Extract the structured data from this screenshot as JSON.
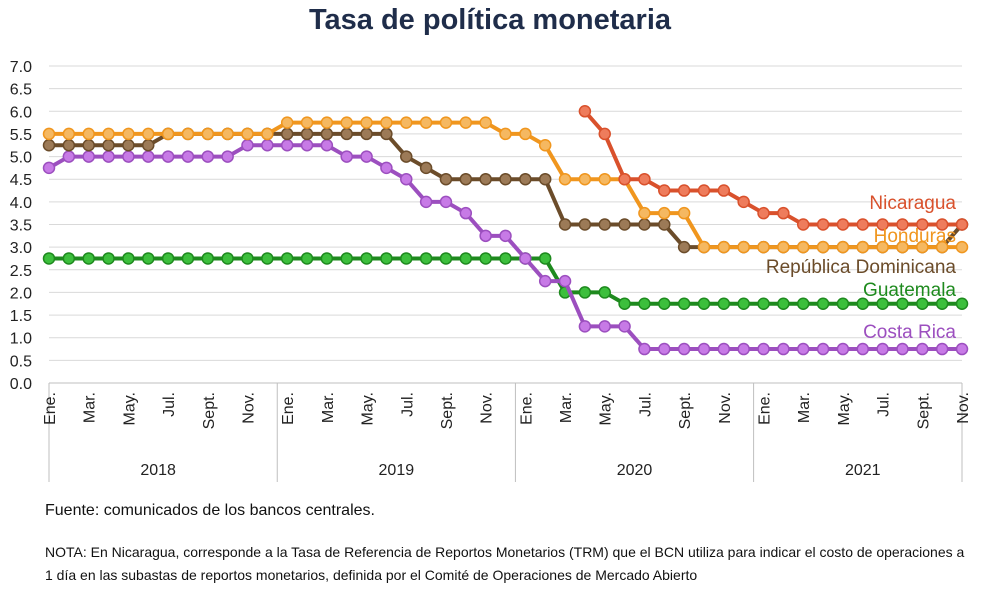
{
  "chart_data": {
    "type": "line",
    "title": "Tasa de política monetaria",
    "ylim": [
      0,
      7
    ],
    "yticks": [
      "0.0",
      "0.5",
      "1.0",
      "1.5",
      "2.0",
      "2.5",
      "3.0",
      "3.5",
      "4.0",
      "4.5",
      "5.0",
      "5.5",
      "6.0",
      "6.5",
      "7.0"
    ],
    "grid": true,
    "month_labels": [
      "Ene.",
      "Mar.",
      "May.",
      "Jul.",
      "Sept.",
      "Nov."
    ],
    "years": [
      "2018",
      "2019",
      "2020",
      "2021"
    ],
    "x": [
      "2018-01",
      "2018-02",
      "2018-03",
      "2018-04",
      "2018-05",
      "2018-06",
      "2018-07",
      "2018-08",
      "2018-09",
      "2018-10",
      "2018-11",
      "2018-12",
      "2019-01",
      "2019-02",
      "2019-03",
      "2019-04",
      "2019-05",
      "2019-06",
      "2019-07",
      "2019-08",
      "2019-09",
      "2019-10",
      "2019-11",
      "2019-12",
      "2020-01",
      "2020-02",
      "2020-03",
      "2020-04",
      "2020-05",
      "2020-06",
      "2020-07",
      "2020-08",
      "2020-09",
      "2020-10",
      "2020-11",
      "2020-12",
      "2021-01",
      "2021-02",
      "2021-03",
      "2021-04",
      "2021-05",
      "2021-06",
      "2021-07",
      "2021-08",
      "2021-09",
      "2021-10",
      "2021-11"
    ],
    "series": [
      {
        "name": "Guatemala",
        "color": "#1e8a1e",
        "marker": "#3cbf3c",
        "values": [
          2.75,
          2.75,
          2.75,
          2.75,
          2.75,
          2.75,
          2.75,
          2.75,
          2.75,
          2.75,
          2.75,
          2.75,
          2.75,
          2.75,
          2.75,
          2.75,
          2.75,
          2.75,
          2.75,
          2.75,
          2.75,
          2.75,
          2.75,
          2.75,
          2.75,
          2.75,
          2.0,
          2.0,
          2.0,
          1.75,
          1.75,
          1.75,
          1.75,
          1.75,
          1.75,
          1.75,
          1.75,
          1.75,
          1.75,
          1.75,
          1.75,
          1.75,
          1.75,
          1.75,
          1.75,
          1.75,
          1.75
        ]
      },
      {
        "name": "Costa Rica",
        "color": "#9c4fbf",
        "marker": "#c77ae6",
        "values": [
          4.75,
          5.0,
          5.0,
          5.0,
          5.0,
          5.0,
          5.0,
          5.0,
          5.0,
          5.0,
          5.25,
          5.25,
          5.25,
          5.25,
          5.25,
          5.0,
          5.0,
          4.75,
          4.5,
          4.0,
          4.0,
          3.75,
          3.25,
          3.25,
          2.75,
          2.25,
          2.25,
          1.25,
          1.25,
          1.25,
          0.75,
          0.75,
          0.75,
          0.75,
          0.75,
          0.75,
          0.75,
          0.75,
          0.75,
          0.75,
          0.75,
          0.75,
          0.75,
          0.75,
          0.75,
          0.75,
          0.75
        ]
      },
      {
        "name": "República Dominicana",
        "color": "#6b4c2a",
        "marker": "#9c7a57",
        "values": [
          5.25,
          5.25,
          5.25,
          5.25,
          5.25,
          5.25,
          5.5,
          5.5,
          5.5,
          5.5,
          5.5,
          5.5,
          5.5,
          5.5,
          5.5,
          5.5,
          5.5,
          5.5,
          5.0,
          4.75,
          4.5,
          4.5,
          4.5,
          4.5,
          4.5,
          4.5,
          3.5,
          3.5,
          3.5,
          3.5,
          3.5,
          3.5,
          3.0,
          3.0,
          3.0,
          3.0,
          3.0,
          3.0,
          3.0,
          3.0,
          3.0,
          3.0,
          3.0,
          3.0,
          3.0,
          3.0,
          3.5
        ]
      },
      {
        "name": "Honduras",
        "color": "#f0961e",
        "marker": "#f5b861",
        "values": [
          5.5,
          5.5,
          5.5,
          5.5,
          5.5,
          5.5,
          5.5,
          5.5,
          5.5,
          5.5,
          5.5,
          5.5,
          5.75,
          5.75,
          5.75,
          5.75,
          5.75,
          5.75,
          5.75,
          5.75,
          5.75,
          5.75,
          5.75,
          5.5,
          5.5,
          5.25,
          4.5,
          4.5,
          4.5,
          4.5,
          3.75,
          3.75,
          3.75,
          3.0,
          3.0,
          3.0,
          3.0,
          3.0,
          3.0,
          3.0,
          3.0,
          3.0,
          3.0,
          3.0,
          3.0,
          3.0,
          3.0
        ]
      },
      {
        "name": "Nicaragua",
        "color": "#d9512c",
        "marker": "#ee7c5c",
        "values": [
          null,
          null,
          null,
          null,
          null,
          null,
          null,
          null,
          null,
          null,
          null,
          null,
          null,
          null,
          null,
          null,
          null,
          null,
          null,
          null,
          null,
          null,
          null,
          null,
          null,
          null,
          null,
          6.0,
          5.5,
          4.5,
          4.5,
          4.25,
          4.25,
          4.25,
          4.25,
          4.0,
          3.75,
          3.75,
          3.5,
          3.5,
          3.5,
          3.5,
          3.5,
          3.5,
          3.5,
          3.5,
          3.5
        ]
      }
    ],
    "series_labels": [
      {
        "text": "Nicaragua",
        "color": "#d9512c",
        "y": 4.0
      },
      {
        "text": "Honduras",
        "color": "#f0961e",
        "y": 3.27
      },
      {
        "text": "República Dominicana",
        "color": "#6b4c2a",
        "y": 2.58
      },
      {
        "text": "Guatemala",
        "color": "#1e8a1e",
        "y": 2.08
      },
      {
        "text": "Costa Rica",
        "color": "#9c4fbf",
        "y": 1.15
      }
    ]
  },
  "footer": {
    "source": "Fuente: comunicados de los bancos centrales.",
    "note": "NOTA: En Nicaragua, corresponde a la Tasa de Referencia de Reportos Monetarios (TRM) que el BCN utiliza para indicar el costo de operaciones a 1 día en las subastas de reportos monetarios, definida por el Comité de Operaciones de Mercado Abierto"
  }
}
